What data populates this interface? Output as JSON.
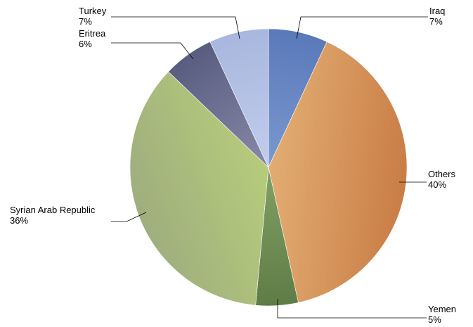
{
  "chart_data": {
    "type": "pie",
    "title": "",
    "slices": [
      {
        "label": "Iraq",
        "value": 7,
        "pct_label": "7%",
        "color": "#7b98cf",
        "color_dark": "#5a79b9"
      },
      {
        "label": "Others",
        "value": 40,
        "pct_label": "40%",
        "color": "#e2ad72",
        "color_dark": "#c97d45"
      },
      {
        "label": "Yemen",
        "value": 5,
        "pct_label": "5%",
        "color": "#83a065",
        "color_dark": "#5e7c46"
      },
      {
        "label": "Syrian Arab Republic",
        "value": 36,
        "pct_label": "36%",
        "color": "#b6cc7b",
        "color_dark": "#9fae7e"
      },
      {
        "label": "Eritrea",
        "value": 6,
        "pct_label": "6%",
        "color": "#8989a9",
        "color_dark": "#585d7f"
      },
      {
        "label": "Turkey",
        "value": 7,
        "pct_label": "7%",
        "color": "#c2cdeb",
        "color_dark": "#a8b7de"
      }
    ],
    "start": "12 o'clock",
    "direction": "clockwise",
    "legend": "none"
  }
}
